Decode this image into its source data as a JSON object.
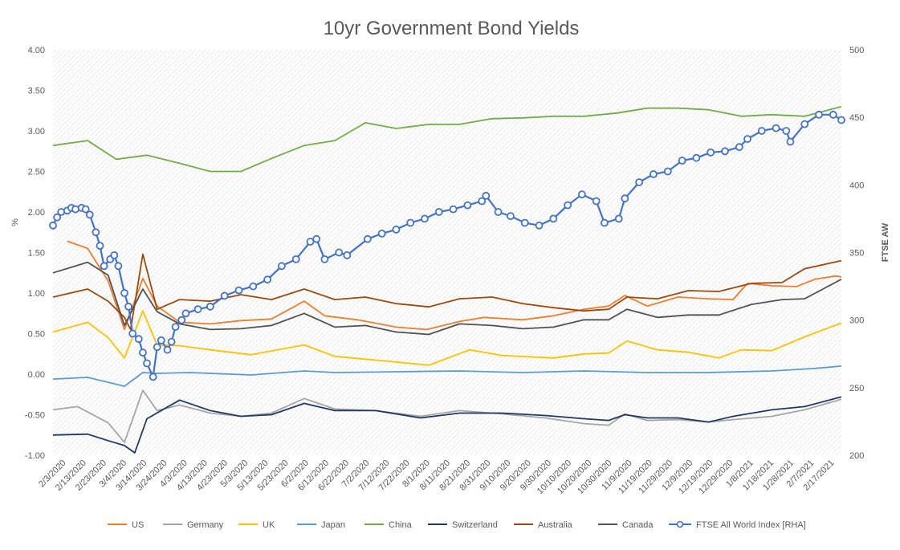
{
  "chart_data": {
    "type": "line",
    "title": "10yr Government Bond Yields",
    "ylabel": "%",
    "y2label": "FTSE AW",
    "ylim": [
      -1.0,
      4.0
    ],
    "y2lim": [
      200,
      500
    ],
    "yticks": [
      "4.00",
      "3.50",
      "3.00",
      "2.50",
      "2.00",
      "1.50",
      "1.00",
      "0.50",
      "0.00",
      "-0.50",
      "-1.00"
    ],
    "y2ticks": [
      "500",
      "450",
      "400",
      "350",
      "300",
      "250",
      "200"
    ],
    "xlim": [
      "2020-02-03",
      "2021-02-23"
    ],
    "xtick_labels": [
      "2/3/2020",
      "2/13/2020",
      "2/23/2020",
      "3/4/2020",
      "3/14/2020",
      "3/24/2020",
      "4/3/2020",
      "4/13/2020",
      "4/23/2020",
      "5/3/2020",
      "5/13/2020",
      "5/23/2020",
      "6/2/2020",
      "6/12/2020",
      "6/22/2020",
      "7/2/2020",
      "7/12/2020",
      "7/22/2020",
      "8/1/2020",
      "8/11/2020",
      "8/21/2020",
      "8/31/2020",
      "9/10/2020",
      "9/20/2020",
      "9/30/2020",
      "10/10/2020",
      "10/20/2020",
      "10/30/2020",
      "11/9/2020",
      "11/19/2020",
      "11/29/2020",
      "12/9/2020",
      "12/19/2020",
      "12/29/2020",
      "1/8/2021",
      "1/18/2021",
      "1/28/2021",
      "2/7/2021",
      "2/17/2021"
    ],
    "grid": false,
    "legend_position": "bottom",
    "series": [
      {
        "name": "US",
        "color": "#ED7D31",
        "axis": "left",
        "x": [
          "2020-02-10",
          "2020-02-20",
          "2020-03-01",
          "2020-03-09",
          "2020-03-18",
          "2020-03-25",
          "2020-04-05",
          "2020-04-20",
          "2020-05-05",
          "2020-05-20",
          "2020-06-05",
          "2020-06-15",
          "2020-07-01",
          "2020-07-20",
          "2020-08-04",
          "2020-08-20",
          "2020-09-01",
          "2020-09-20",
          "2020-10-05",
          "2020-10-20",
          "2020-11-01",
          "2020-11-09",
          "2020-11-20",
          "2020-12-05",
          "2020-12-20",
          "2021-01-01",
          "2021-01-08",
          "2021-01-20",
          "2021-02-01",
          "2021-02-10",
          "2021-02-20",
          "2021-02-23"
        ],
        "y": [
          1.64,
          1.55,
          1.15,
          0.55,
          1.18,
          0.84,
          0.64,
          0.62,
          0.66,
          0.68,
          0.9,
          0.72,
          0.67,
          0.58,
          0.55,
          0.65,
          0.7,
          0.67,
          0.72,
          0.8,
          0.84,
          0.97,
          0.84,
          0.95,
          0.93,
          0.92,
          1.12,
          1.09,
          1.08,
          1.17,
          1.21,
          1.2
        ]
      },
      {
        "name": "Germany",
        "color": "#A5A5A5",
        "axis": "left",
        "x": [
          "2020-02-03",
          "2020-02-15",
          "2020-03-01",
          "2020-03-09",
          "2020-03-18",
          "2020-03-25",
          "2020-04-05",
          "2020-04-20",
          "2020-05-05",
          "2020-05-20",
          "2020-06-05",
          "2020-06-20",
          "2020-07-10",
          "2020-08-01",
          "2020-08-20",
          "2020-09-10",
          "2020-10-01",
          "2020-10-20",
          "2020-11-01",
          "2020-11-09",
          "2020-11-20",
          "2020-12-05",
          "2020-12-20",
          "2021-01-01",
          "2021-01-20",
          "2021-02-05",
          "2021-02-23"
        ],
        "y": [
          -0.44,
          -0.4,
          -0.6,
          -0.84,
          -0.2,
          -0.45,
          -0.38,
          -0.48,
          -0.52,
          -0.48,
          -0.3,
          -0.43,
          -0.45,
          -0.52,
          -0.45,
          -0.49,
          -0.54,
          -0.61,
          -0.63,
          -0.49,
          -0.57,
          -0.56,
          -0.59,
          -0.56,
          -0.52,
          -0.44,
          -0.31
        ]
      },
      {
        "name": "UK",
        "color": "#FFC000",
        "axis": "left",
        "x": [
          "2020-02-03",
          "2020-02-20",
          "2020-03-01",
          "2020-03-09",
          "2020-03-18",
          "2020-03-25",
          "2020-04-05",
          "2020-04-20",
          "2020-05-10",
          "2020-06-05",
          "2020-06-20",
          "2020-07-20",
          "2020-08-05",
          "2020-08-25",
          "2020-09-10",
          "2020-10-05",
          "2020-10-20",
          "2020-11-01",
          "2020-11-10",
          "2020-11-25",
          "2020-12-10",
          "2020-12-25",
          "2021-01-05",
          "2021-01-20",
          "2021-02-05",
          "2021-02-23"
        ],
        "y": [
          0.52,
          0.64,
          0.45,
          0.2,
          0.78,
          0.36,
          0.35,
          0.3,
          0.24,
          0.36,
          0.22,
          0.15,
          0.11,
          0.3,
          0.23,
          0.2,
          0.25,
          0.26,
          0.41,
          0.3,
          0.27,
          0.2,
          0.3,
          0.29,
          0.46,
          0.63
        ]
      },
      {
        "name": "Japan",
        "color": "#5B9BD5",
        "axis": "left",
        "x": [
          "2020-02-03",
          "2020-02-20",
          "2020-03-01",
          "2020-03-09",
          "2020-03-18",
          "2020-03-25",
          "2020-04-10",
          "2020-05-10",
          "2020-06-05",
          "2020-06-20",
          "2020-07-20",
          "2020-08-20",
          "2020-09-20",
          "2020-10-20",
          "2020-11-20",
          "2020-12-20",
          "2021-01-20",
          "2021-02-10",
          "2021-02-23"
        ],
        "y": [
          -0.06,
          -0.04,
          -0.1,
          -0.15,
          0.02,
          0.01,
          0.02,
          -0.01,
          0.04,
          0.02,
          0.03,
          0.04,
          0.02,
          0.04,
          0.02,
          0.02,
          0.04,
          0.07,
          0.1
        ]
      },
      {
        "name": "China",
        "color": "#70AD47",
        "axis": "left",
        "x": [
          "2020-02-03",
          "2020-02-20",
          "2020-03-05",
          "2020-03-20",
          "2020-04-05",
          "2020-04-20",
          "2020-05-05",
          "2020-05-20",
          "2020-06-05",
          "2020-06-20",
          "2020-07-05",
          "2020-07-20",
          "2020-08-05",
          "2020-08-20",
          "2020-09-05",
          "2020-09-20",
          "2020-10-05",
          "2020-10-20",
          "2020-11-05",
          "2020-11-20",
          "2020-12-05",
          "2020-12-20",
          "2021-01-05",
          "2021-01-20",
          "2021-02-05",
          "2021-02-23"
        ],
        "y": [
          2.82,
          2.88,
          2.65,
          2.7,
          2.6,
          2.5,
          2.5,
          2.66,
          2.82,
          2.88,
          3.1,
          3.03,
          3.08,
          3.08,
          3.15,
          3.16,
          3.18,
          3.18,
          3.22,
          3.28,
          3.28,
          3.26,
          3.18,
          3.2,
          3.18,
          3.3
        ]
      },
      {
        "name": "Switzerland",
        "color": "#203864",
        "axis": "left",
        "x": [
          "2020-02-03",
          "2020-02-20",
          "2020-03-01",
          "2020-03-09",
          "2020-03-14",
          "2020-03-20",
          "2020-04-05",
          "2020-04-20",
          "2020-05-05",
          "2020-05-20",
          "2020-06-05",
          "2020-06-20",
          "2020-07-10",
          "2020-08-01",
          "2020-08-20",
          "2020-09-10",
          "2020-10-01",
          "2020-10-20",
          "2020-11-01",
          "2020-11-09",
          "2020-11-20",
          "2020-12-05",
          "2020-12-20",
          "2021-01-01",
          "2021-01-20",
          "2021-02-05",
          "2021-02-23"
        ],
        "y": [
          -0.75,
          -0.74,
          -0.82,
          -0.88,
          -0.97,
          -0.55,
          -0.32,
          -0.45,
          -0.52,
          -0.5,
          -0.36,
          -0.45,
          -0.45,
          -0.54,
          -0.48,
          -0.48,
          -0.51,
          -0.55,
          -0.57,
          -0.5,
          -0.54,
          -0.54,
          -0.59,
          -0.52,
          -0.44,
          -0.4,
          -0.28
        ]
      },
      {
        "name": "Australia",
        "color": "#9E480E",
        "axis": "left",
        "x": [
          "2020-02-03",
          "2020-02-20",
          "2020-03-01",
          "2020-03-09",
          "2020-03-12",
          "2020-03-18",
          "2020-03-25",
          "2020-04-05",
          "2020-04-20",
          "2020-05-05",
          "2020-05-20",
          "2020-06-05",
          "2020-06-20",
          "2020-07-05",
          "2020-07-20",
          "2020-08-05",
          "2020-08-20",
          "2020-09-05",
          "2020-09-20",
          "2020-10-05",
          "2020-10-20",
          "2020-11-01",
          "2020-11-10",
          "2020-11-25",
          "2020-12-10",
          "2020-12-25",
          "2021-01-10",
          "2021-01-25",
          "2021-02-05",
          "2021-02-23"
        ],
        "y": [
          0.95,
          1.05,
          0.9,
          0.7,
          0.55,
          1.48,
          0.8,
          0.92,
          0.9,
          0.98,
          0.92,
          1.05,
          0.92,
          0.95,
          0.87,
          0.83,
          0.93,
          0.95,
          0.87,
          0.82,
          0.78,
          0.8,
          0.95,
          0.93,
          1.03,
          1.02,
          1.12,
          1.13,
          1.3,
          1.4
        ]
      },
      {
        "name": "Canada",
        "color": "#525252",
        "axis": "left",
        "x": [
          "2020-02-03",
          "2020-02-20",
          "2020-03-01",
          "2020-03-09",
          "2020-03-18",
          "2020-03-25",
          "2020-04-05",
          "2020-04-20",
          "2020-05-05",
          "2020-05-20",
          "2020-06-05",
          "2020-06-20",
          "2020-07-05",
          "2020-07-20",
          "2020-08-05",
          "2020-08-20",
          "2020-09-05",
          "2020-09-20",
          "2020-10-05",
          "2020-10-20",
          "2020-11-01",
          "2020-11-10",
          "2020-11-25",
          "2020-12-10",
          "2020-12-25",
          "2021-01-10",
          "2021-01-25",
          "2021-02-05",
          "2021-02-23"
        ],
        "y": [
          1.25,
          1.38,
          1.22,
          0.6,
          1.05,
          0.77,
          0.62,
          0.55,
          0.56,
          0.6,
          0.75,
          0.58,
          0.6,
          0.52,
          0.49,
          0.62,
          0.6,
          0.56,
          0.58,
          0.67,
          0.67,
          0.8,
          0.7,
          0.73,
          0.73,
          0.86,
          0.92,
          0.93,
          1.17
        ]
      },
      {
        "name": "FTSE All World Index [RHA]",
        "color": "#4472C4",
        "axis": "right",
        "markers": true,
        "x": [
          "2020-02-03",
          "2020-02-05",
          "2020-02-07",
          "2020-02-10",
          "2020-02-12",
          "2020-02-14",
          "2020-02-17",
          "2020-02-19",
          "2020-02-21",
          "2020-02-24",
          "2020-02-26",
          "2020-02-28",
          "2020-03-02",
          "2020-03-04",
          "2020-03-06",
          "2020-03-09",
          "2020-03-11",
          "2020-03-13",
          "2020-03-16",
          "2020-03-18",
          "2020-03-20",
          "2020-03-23",
          "2020-03-25",
          "2020-03-27",
          "2020-03-30",
          "2020-04-01",
          "2020-04-03",
          "2020-04-06",
          "2020-04-08",
          "2020-04-14",
          "2020-04-20",
          "2020-04-27",
          "2020-05-04",
          "2020-05-11",
          "2020-05-18",
          "2020-05-25",
          "2020-06-01",
          "2020-06-08",
          "2020-06-11",
          "2020-06-15",
          "2020-06-22",
          "2020-06-26",
          "2020-07-06",
          "2020-07-13",
          "2020-07-20",
          "2020-07-27",
          "2020-08-03",
          "2020-08-10",
          "2020-08-17",
          "2020-08-24",
          "2020-08-31",
          "2020-09-02",
          "2020-09-08",
          "2020-09-14",
          "2020-09-21",
          "2020-09-28",
          "2020-10-05",
          "2020-10-12",
          "2020-10-19",
          "2020-10-26",
          "2020-10-30",
          "2020-11-06",
          "2020-11-09",
          "2020-11-16",
          "2020-11-23",
          "2020-11-30",
          "2020-12-07",
          "2020-12-14",
          "2020-12-21",
          "2020-12-28",
          "2021-01-04",
          "2021-01-08",
          "2021-01-15",
          "2021-01-22",
          "2021-01-27",
          "2021-01-29",
          "2021-02-05",
          "2021-02-12",
          "2021-02-19",
          "2021-02-23"
        ],
        "y": [
          370,
          376,
          380,
          381,
          383,
          382,
          383,
          382,
          378,
          365,
          355,
          340,
          345,
          348,
          340,
          320,
          310,
          290,
          286,
          276,
          268,
          258,
          280,
          285,
          278,
          284,
          295,
          300,
          305,
          308,
          310,
          318,
          322,
          325,
          330,
          340,
          345,
          358,
          360,
          345,
          350,
          348,
          360,
          364,
          367,
          372,
          375,
          380,
          382,
          385,
          388,
          392,
          380,
          377,
          372,
          370,
          375,
          385,
          393,
          388,
          372,
          375,
          390,
          402,
          408,
          410,
          418,
          420,
          424,
          425,
          428,
          434,
          440,
          442,
          440,
          432,
          445,
          452,
          452,
          448
        ]
      }
    ]
  }
}
